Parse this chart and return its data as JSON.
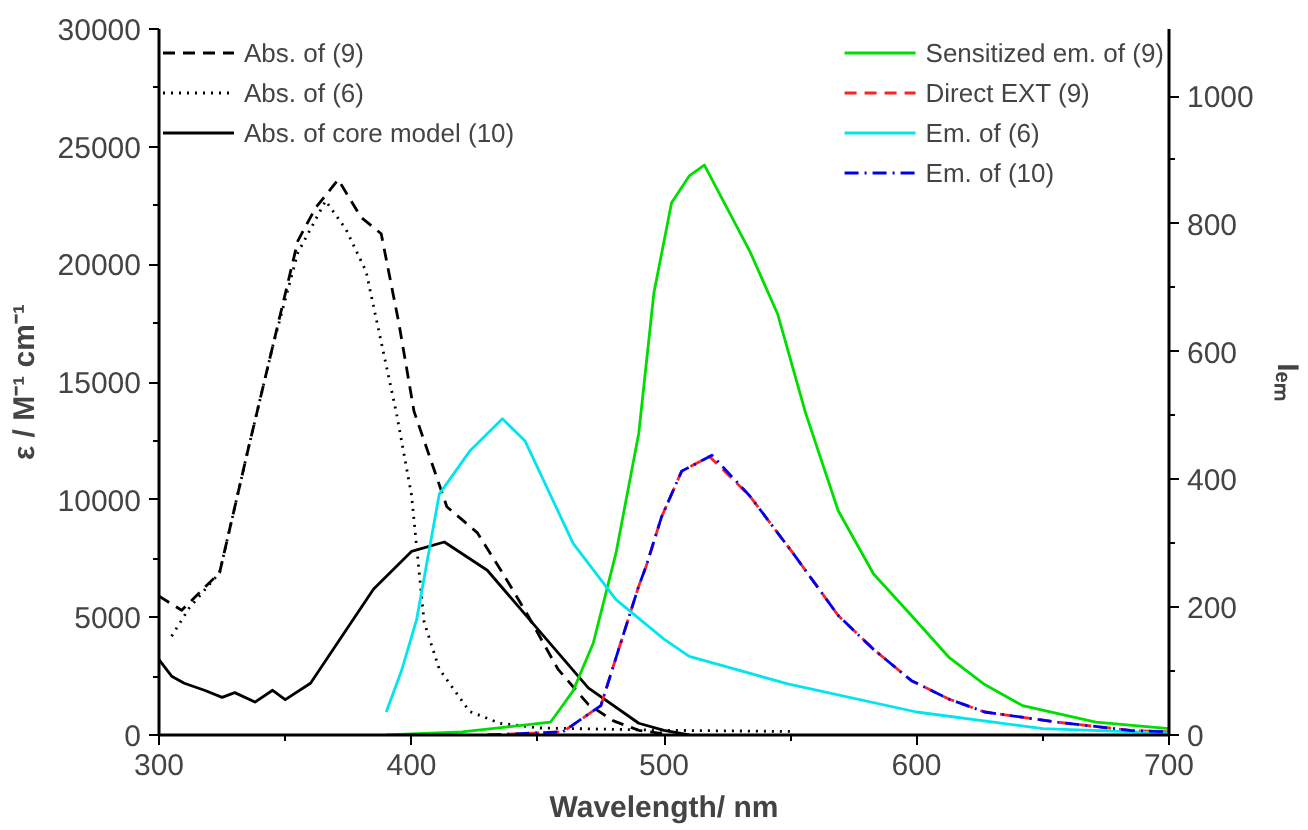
{
  "chart_data": {
    "type": "line",
    "xlabel": "Wavelength/ nm",
    "ylabel": "ε / M⁻¹ cm⁻¹",
    "y2label": "Iₑₘ",
    "xlim": [
      300,
      700
    ],
    "ylim": [
      0,
      30000
    ],
    "y2lim": [
      0,
      1105
    ],
    "xticks": [
      300,
      {
        "value": 350,
        "label": null
      },
      400,
      {
        "value": 450,
        "label": null
      },
      500,
      {
        "value": 550,
        "label": null
      },
      600,
      {
        "value": 650,
        "label": null
      },
      700
    ],
    "yticks": [
      0,
      {
        "value": 2500,
        "label": null
      },
      5000,
      {
        "value": 7500,
        "label": null
      },
      10000,
      {
        "value": 12500,
        "label": null
      },
      15000,
      {
        "value": 17500,
        "label": null
      },
      20000,
      {
        "value": 22500,
        "label": null
      },
      25000,
      {
        "value": 27500,
        "label": null
      },
      30000
    ],
    "y2ticks": [
      0,
      {
        "value": 100,
        "label": null
      },
      200,
      {
        "value": 300,
        "label": null
      },
      400,
      {
        "value": 500,
        "label": null
      },
      600,
      {
        "value": 700,
        "label": null
      },
      800,
      {
        "value": 900,
        "label": null
      },
      1000
    ],
    "grid": false,
    "legend": "top",
    "marker": "none",
    "series": [
      {
        "name": "Abs. of (9)",
        "color": "#000000",
        "line_style": "dashed",
        "x": [
          300,
          309,
          324,
          335,
          345,
          355,
          362,
          371,
          380,
          388,
          395,
          401,
          414,
          426,
          436,
          446,
          458,
          470,
          480,
          490,
          500
        ],
        "values": [
          5900,
          5300,
          6900,
          12000,
          16500,
          21000,
          22400,
          23600,
          22000,
          21300,
          17500,
          13750,
          9700,
          8600,
          6900,
          5100,
          2800,
          1300,
          600,
          200,
          50
        ]
      },
      {
        "name": "Abs. of (6)",
        "color": "#000000",
        "line_style": "dotted",
        "x": [
          305,
          312,
          324,
          335,
          345,
          355,
          366,
          374,
          382,
          394,
          400,
          405,
          411,
          423,
          435,
          450,
          500,
          550
        ],
        "values": [
          4200,
          5400,
          6900,
          12000,
          16500,
          20500,
          22700,
          21500,
          19700,
          13700,
          10200,
          4800,
          2800,
          1000,
          500,
          300,
          200,
          150
        ]
      },
      {
        "name": "Abs. of core model (10)",
        "color": "#000000",
        "line_style": "solid",
        "x": [
          300,
          305,
          310,
          318,
          325,
          330,
          338,
          345,
          350,
          360,
          370,
          385,
          400,
          413,
          430,
          450,
          470,
          490,
          500,
          510
        ],
        "values": [
          3200,
          2500,
          2200,
          1900,
          1600,
          1800,
          1400,
          1900,
          1500,
          2200,
          3800,
          6200,
          7800,
          8200,
          7000,
          4500,
          2000,
          500,
          200,
          0
        ]
      },
      {
        "name": "Sensitized em. of (9)",
        "color": "#00dd00",
        "line_style": "solid",
        "axis": "y2",
        "x": [
          390,
          420,
          455,
          458,
          464,
          472,
          481,
          490,
          496,
          503,
          510,
          516,
          534,
          545,
          556,
          569,
          583,
          598,
          613,
          627,
          642,
          671,
          700
        ],
        "values": [
          0,
          5,
          20,
          36,
          69,
          144,
          285,
          472,
          692,
          833,
          875,
          892,
          757,
          659,
          505,
          351,
          252,
          187,
          121,
          79,
          46,
          20,
          10
        ]
      },
      {
        "name": "Direct EXT (9)",
        "color": "#ff2020",
        "line_style": "dashed",
        "axis": "y2",
        "x": [
          430,
          460,
          475,
          481,
          490,
          493,
          499,
          507,
          518,
          534,
          551,
          569,
          583,
          598,
          613,
          627,
          656,
          685,
          700
        ],
        "values": [
          0,
          5,
          46,
          121,
          233,
          265,
          341,
          413,
          436,
          374,
          285,
          187,
          134,
          85,
          56,
          36,
          20,
          7,
          5
        ]
      },
      {
        "name": "Em. of (6)",
        "color": "#00e5ee",
        "line_style": "solid",
        "axis": "y2",
        "x": [
          390,
          396,
          402,
          411,
          423,
          436,
          445,
          464,
          481,
          500,
          510,
          549,
          600,
          650,
          700
        ],
        "values": [
          36,
          100,
          180,
          377,
          444,
          495,
          460,
          300,
          212,
          150,
          123,
          80,
          36,
          10,
          3
        ]
      },
      {
        "name": "Em. of (10)",
        "color": "#0000ee",
        "line_style": "dashdot",
        "axis": "y2",
        "x": [
          430,
          460,
          475,
          481,
          490,
          493,
          499,
          507,
          519,
          534,
          551,
          569,
          583,
          598,
          613,
          627,
          656,
          685,
          700
        ],
        "values": [
          0,
          5,
          46,
          121,
          233,
          265,
          341,
          413,
          438,
          374,
          285,
          187,
          134,
          85,
          56,
          36,
          20,
          7,
          5
        ]
      }
    ]
  }
}
